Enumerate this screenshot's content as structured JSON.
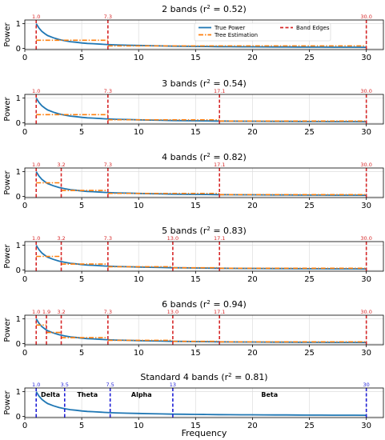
{
  "chart_data": {
    "figure": {
      "xlabel": "Frequency",
      "ylabel": "Power",
      "xlim": [
        0,
        31.5
      ],
      "ylim": [
        -0.05,
        1.15
      ],
      "xticks": [
        0,
        5,
        10,
        15,
        20,
        25,
        30
      ],
      "yticks": [
        0,
        1
      ],
      "grid": true
    },
    "legend": {
      "placement": "top-right",
      "entries": [
        {
          "name": "True Power",
          "color": "#1f77b4",
          "style": "solid"
        },
        {
          "name": "Tree Estimation",
          "color": "#ff7f0e",
          "style": "dashdot"
        },
        {
          "name": "Band Edges",
          "color": "#d62728",
          "style": "dashed"
        }
      ]
    },
    "true_power": {
      "type": "line",
      "name": "True Power",
      "formula_note": "",
      "x": [
        1.0,
        1.25,
        1.5,
        1.75,
        2.0,
        2.5,
        3.0,
        3.5,
        4.0,
        4.5,
        5.0,
        5.5,
        6.0,
        7.0,
        8.0,
        9.0,
        10.0,
        11.0,
        12.0,
        13.0,
        14.0,
        15.0,
        16.0,
        17.0,
        18.0,
        19.0,
        20.0,
        21.0,
        22.0,
        23.0,
        24.0,
        25.0,
        26.0,
        27.0,
        28.0,
        29.0,
        30.0
      ],
      "y": [
        1.0,
        0.82,
        0.69,
        0.6,
        0.52,
        0.43,
        0.36,
        0.31,
        0.27,
        0.25,
        0.22,
        0.2,
        0.19,
        0.16,
        0.14,
        0.13,
        0.12,
        0.11,
        0.1,
        0.09,
        0.085,
        0.08,
        0.075,
        0.07,
        0.068,
        0.065,
        0.062,
        0.06,
        0.058,
        0.056,
        0.054,
        0.052,
        0.05,
        0.048,
        0.047,
        0.046,
        0.045
      ]
    },
    "panels": [
      {
        "title_prefix": "2 bands (r",
        "title_sup": "2",
        "title_suffix": " = 0.52)",
        "edges": [
          1.0,
          7.3,
          30.0
        ],
        "edge_labels": [
          "1.0",
          "7.3",
          "30.0"
        ],
        "edge_color": "#d62728",
        "estimation": [
          0.33,
          0.1
        ],
        "band_names": [],
        "show_legend": true
      },
      {
        "title_prefix": "3 bands (r",
        "title_sup": "2",
        "title_suffix": " = 0.54)",
        "edges": [
          1.0,
          7.3,
          17.1,
          30.0
        ],
        "edge_labels": [
          "1.0",
          "7.3",
          "17.1",
          "30.0"
        ],
        "edge_color": "#d62728",
        "estimation": [
          0.33,
          0.12,
          0.07
        ],
        "band_names": [],
        "show_legend": false
      },
      {
        "title_prefix": "4 bands (r",
        "title_sup": "2",
        "title_suffix": " = 0.82)",
        "edges": [
          1.0,
          3.2,
          7.3,
          17.1,
          30.0
        ],
        "edge_labels": [
          "1.0",
          "3.2",
          "7.3",
          "17.1",
          "30.0"
        ],
        "edge_color": "#d62728",
        "estimation": [
          0.55,
          0.24,
          0.12,
          0.07
        ],
        "band_names": [],
        "show_legend": false
      },
      {
        "title_prefix": "5 bands (r",
        "title_sup": "2",
        "title_suffix": " = 0.83)",
        "edges": [
          1.0,
          3.2,
          7.3,
          13.0,
          17.1,
          30.0
        ],
        "edge_labels": [
          "1.0",
          "3.2",
          "7.3",
          "13.0",
          "17.1",
          "30.0"
        ],
        "edge_color": "#d62728",
        "estimation": [
          0.55,
          0.24,
          0.13,
          0.09,
          0.07
        ],
        "band_names": [],
        "show_legend": false
      },
      {
        "title_prefix": "6 bands (r",
        "title_sup": "2",
        "title_suffix": " = 0.94)",
        "edges": [
          1.0,
          1.9,
          3.2,
          7.3,
          13.0,
          17.1,
          30.0
        ],
        "edge_labels": [
          "1.0",
          "1.9",
          "3.2",
          "7.3",
          "13.0",
          "17.1",
          "30.0"
        ],
        "edge_color": "#d62728",
        "estimation": [
          0.75,
          0.45,
          0.24,
          0.13,
          0.09,
          0.07
        ],
        "band_names": [],
        "show_legend": false
      },
      {
        "title_prefix": "Standard 4 bands (r",
        "title_sup": "2",
        "title_suffix": " = 0.81)",
        "edges": [
          1.0,
          3.5,
          7.5,
          13.0,
          30.0
        ],
        "edge_labels": [
          "1.0",
          "3.5",
          "7.5",
          "13",
          "30"
        ],
        "edge_color": "#1f1fd6",
        "estimation": [],
        "band_names": [
          "Delta",
          "Theta",
          "Alpha",
          "Beta"
        ],
        "show_legend": false
      }
    ]
  }
}
